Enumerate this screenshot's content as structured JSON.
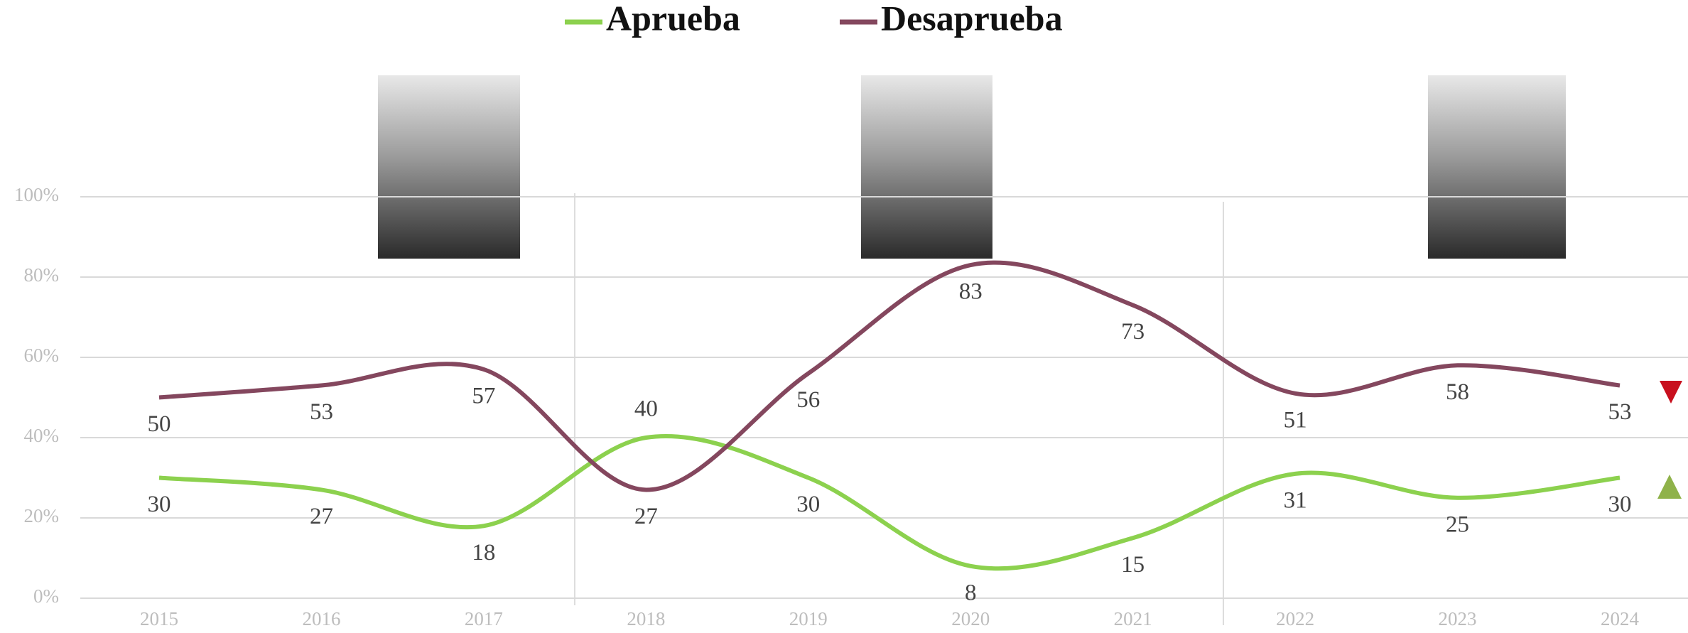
{
  "chart_data": {
    "type": "line",
    "categories": [
      "2015",
      "2016",
      "2017",
      "2018",
      "2019",
      "2020",
      "2021",
      "2022",
      "2023",
      "2024"
    ],
    "series": [
      {
        "name": "Aprueba",
        "color": "#8cd14e",
        "values": [
          30,
          27,
          18,
          40,
          30,
          8,
          15,
          31,
          25,
          30
        ]
      },
      {
        "name": "Desaprueba",
        "color": "#84475e",
        "values": [
          50,
          53,
          57,
          27,
          56,
          83,
          73,
          51,
          58,
          53
        ]
      }
    ],
    "ylim": [
      0,
      100
    ],
    "yticks": [
      {
        "value": 0,
        "label": "0%"
      },
      {
        "value": 20,
        "label": "20%"
      },
      {
        "value": 40,
        "label": "40%"
      },
      {
        "value": 60,
        "label": "60%"
      },
      {
        "value": 80,
        "label": "80%"
      },
      {
        "value": 100,
        "label": "100%"
      }
    ],
    "grid": true
  }
}
